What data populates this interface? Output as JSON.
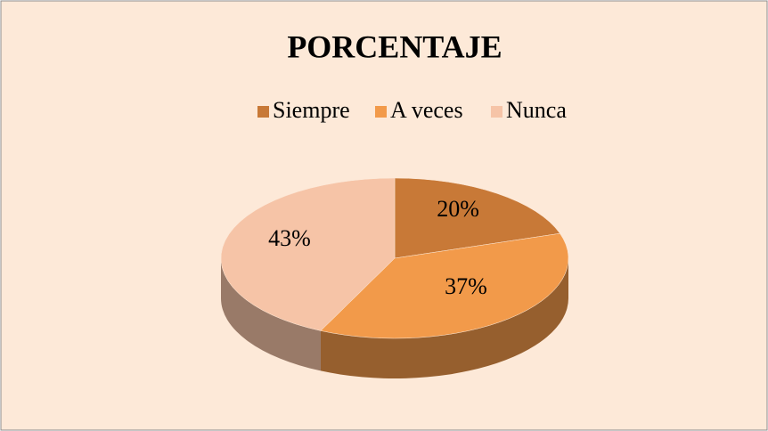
{
  "chart_data": {
    "type": "pie3d",
    "title": "PORCENTAJE",
    "categories": [
      "Siempre",
      "A veces",
      "Nunca"
    ],
    "values": [
      20,
      37,
      43
    ],
    "value_labels": [
      "20%",
      "37%",
      "43%"
    ],
    "colors": [
      "#c87937",
      "#f29a4a",
      "#f6c4a7"
    ],
    "legend": "top"
  }
}
